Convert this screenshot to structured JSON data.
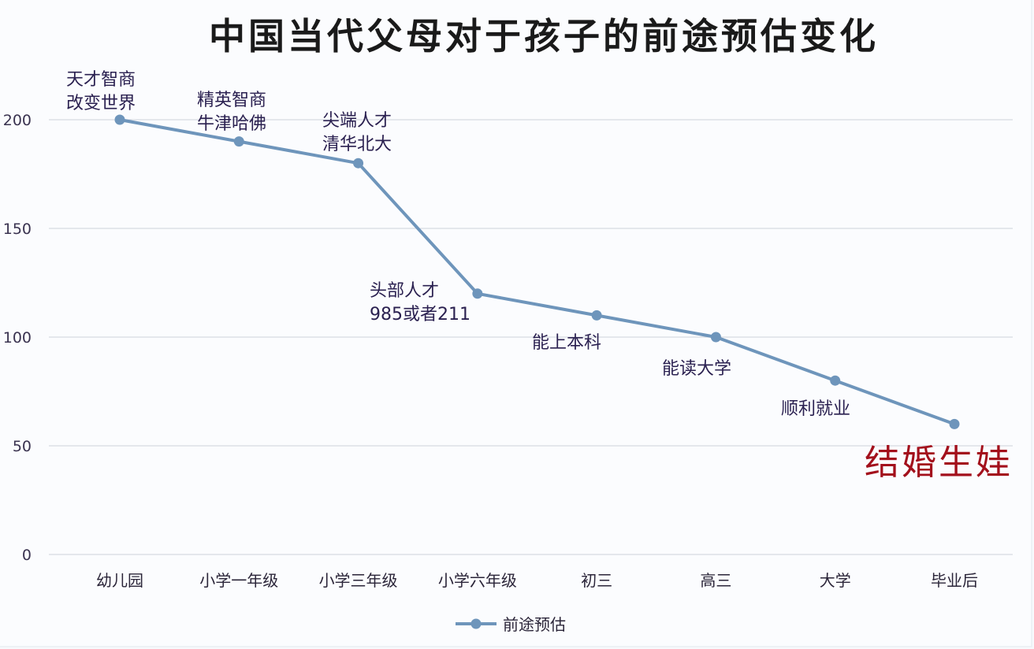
{
  "chart_data": {
    "type": "line",
    "title": "中国当代父母对于孩子的前途预估变化",
    "xlabel": "",
    "ylabel": "",
    "ylim": [
      0,
      200
    ],
    "yticks": [
      0,
      50,
      100,
      150,
      200
    ],
    "grid": true,
    "legend_position": "bottom",
    "categories": [
      "幼儿园",
      "小学一年级",
      "小学三年级",
      "小学六年级",
      "初三",
      "高三",
      "大学",
      "毕业后"
    ],
    "series": [
      {
        "name": "前途预估",
        "color": "#6e95bb",
        "values": [
          200,
          190,
          180,
          120,
          110,
          100,
          80,
          60
        ]
      }
    ],
    "annotations": [
      {
        "category": "幼儿园",
        "lines": [
          "天才智商",
          "改变世界"
        ]
      },
      {
        "category": "小学一年级",
        "lines": [
          "精英智商",
          "牛津哈佛"
        ]
      },
      {
        "category": "小学三年级",
        "lines": [
          "尖端人才",
          "清华北大"
        ]
      },
      {
        "category": "小学六年级",
        "lines": [
          "头部人才",
          "985或者211"
        ]
      },
      {
        "category": "初三",
        "lines": [
          "能上本科"
        ]
      },
      {
        "category": "高三",
        "lines": [
          "能读大学"
        ]
      },
      {
        "category": "大学",
        "lines": [
          "顺利就业"
        ]
      },
      {
        "category": "毕业后",
        "lines": [
          "结婚生娃"
        ],
        "color": "#a3101c",
        "emphasis": true
      }
    ]
  },
  "colors": {
    "line": "#6e95bb",
    "marker": "#6e95bb",
    "grid": "#d5dae2",
    "highlight": "#a3101c"
  }
}
